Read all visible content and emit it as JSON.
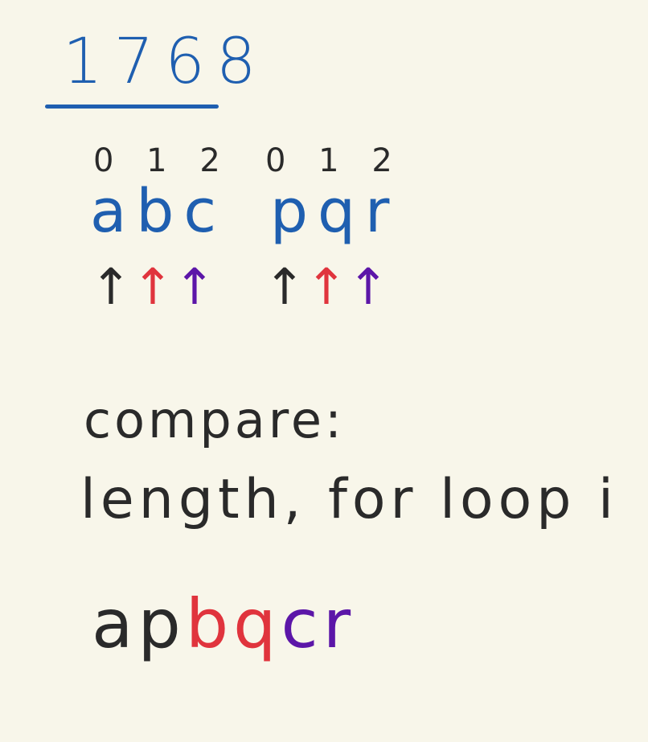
{
  "colors": {
    "blue": "#1f5fb0",
    "black": "#2a2a2a",
    "red": "#e0343d",
    "purple": "#5c16a8",
    "background": "#f8f6ea"
  },
  "title": "1768",
  "word1": {
    "indices": "0 1 2",
    "letters": "abc",
    "arrows": [
      "↑",
      "↑",
      "↑"
    ]
  },
  "word2": {
    "indices": "0 1 2",
    "letters": "pqr",
    "arrows": [
      "↑",
      "↑",
      "↑"
    ]
  },
  "notes": {
    "compare": "compare:",
    "loop": "length, for loop i"
  },
  "result": [
    "a",
    "p",
    "b",
    "q",
    "c",
    "r"
  ]
}
